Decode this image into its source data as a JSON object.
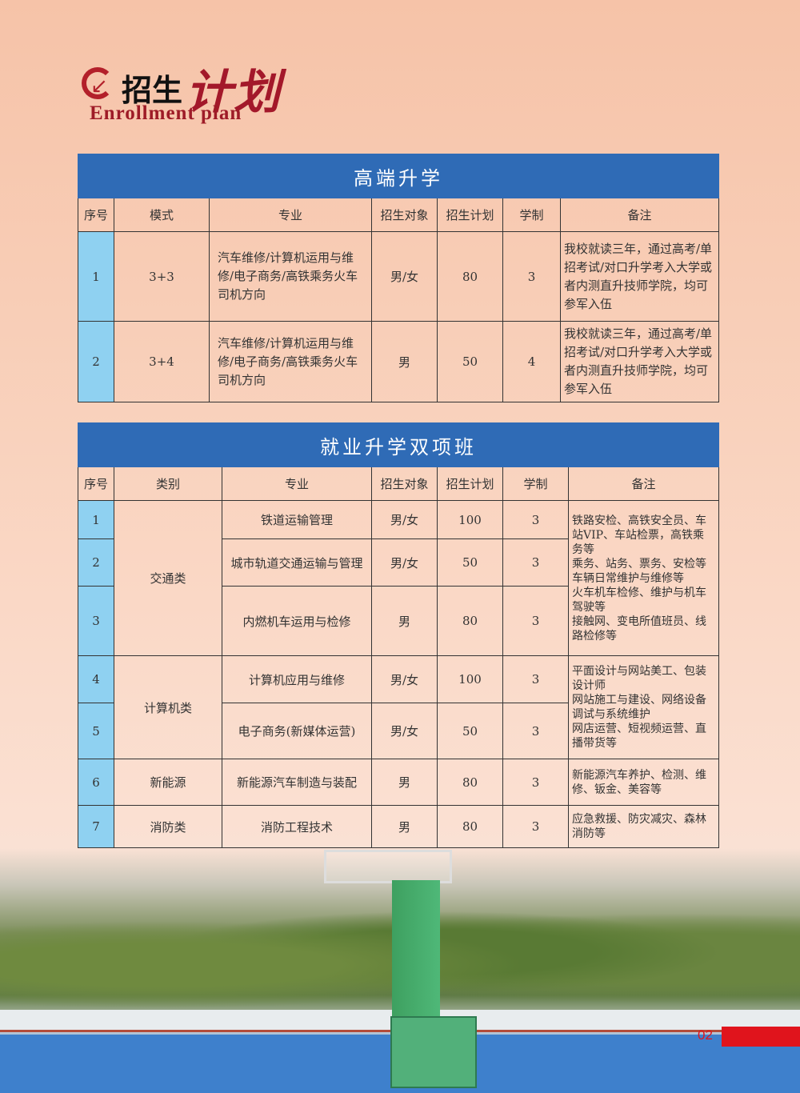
{
  "header": {
    "title_part1": "招生",
    "title_part2": "计划",
    "subtitle": "Enrollment plan"
  },
  "table1": {
    "title": "高端升学",
    "columns": [
      "序号",
      "模式",
      "专业",
      "招生对象",
      "招生计划",
      "学制",
      "备注"
    ],
    "rows": [
      {
        "no": "1",
        "mode": "3+3",
        "major": "汽车维修/计算机运用与维修/电子商务/高铁乘务火车司机方向",
        "target": "男/女",
        "plan": "80",
        "years": "3",
        "note": "我校就读三年，通过高考/单招考试/对口升学考入大学或者内测直升技师学院，均可参军入伍"
      },
      {
        "no": "2",
        "mode": "3+4",
        "major": "汽车维修/计算机运用与维修/电子商务/高铁乘务火车司机方向",
        "target": "男",
        "plan": "50",
        "years": "4",
        "note": "我校就读三年，通过高考/单招考试/对口升学考入大学或者内测直升技师学院，均可参军入伍"
      }
    ]
  },
  "table2": {
    "title": "就业升学双项班",
    "columns": [
      "序号",
      "类别",
      "专业",
      "招生对象",
      "招生计划",
      "学制",
      "备注"
    ],
    "categories": [
      "交通类",
      "计算机类",
      "新能源",
      "消防类"
    ],
    "rows": [
      {
        "no": "1",
        "major": "铁道运输管理",
        "target": "男/女",
        "plan": "100",
        "years": "3"
      },
      {
        "no": "2",
        "major": "城市轨道交通运输与管理",
        "target": "男/女",
        "plan": "50",
        "years": "3"
      },
      {
        "no": "3",
        "major": "内燃机车运用与检修",
        "target": "男",
        "plan": "80",
        "years": "3"
      },
      {
        "no": "4",
        "major": "计算机应用与维修",
        "target": "男/女",
        "plan": "100",
        "years": "3"
      },
      {
        "no": "5",
        "major": "电子商务(新媒体运营)",
        "target": "男/女",
        "plan": "50",
        "years": "3"
      },
      {
        "no": "6",
        "major": "新能源汽车制造与装配",
        "target": "男",
        "plan": "80",
        "years": "3"
      },
      {
        "no": "7",
        "major": "消防工程技术",
        "target": "男",
        "plan": "80",
        "years": "3"
      }
    ],
    "notes": [
      "铁路安检、高铁安全员、车站VIP、车站检票，高铁乘务等\n乘务、站务、票务、安检等\n车辆日常维护与维修等\n火车机车检修、维护与机车驾驶等\n接触网、变电所值班员、线路检修等",
      "平面设计与网站美工、包装设计师\n网站施工与建设、网络设备调试与系统维护\n网店运营、短视频运营、直播带货等",
      "新能源汽车养护、检测、维修、钣金、美容等",
      "应急救援、防灾减灾、森林消防等"
    ]
  },
  "footer": {
    "page_number": "02"
  },
  "colors": {
    "title_bar": "#2f6bb6",
    "index_column": "#8fd1f1",
    "accent_red": "#a3182a",
    "page_bar": "#e0141c"
  }
}
